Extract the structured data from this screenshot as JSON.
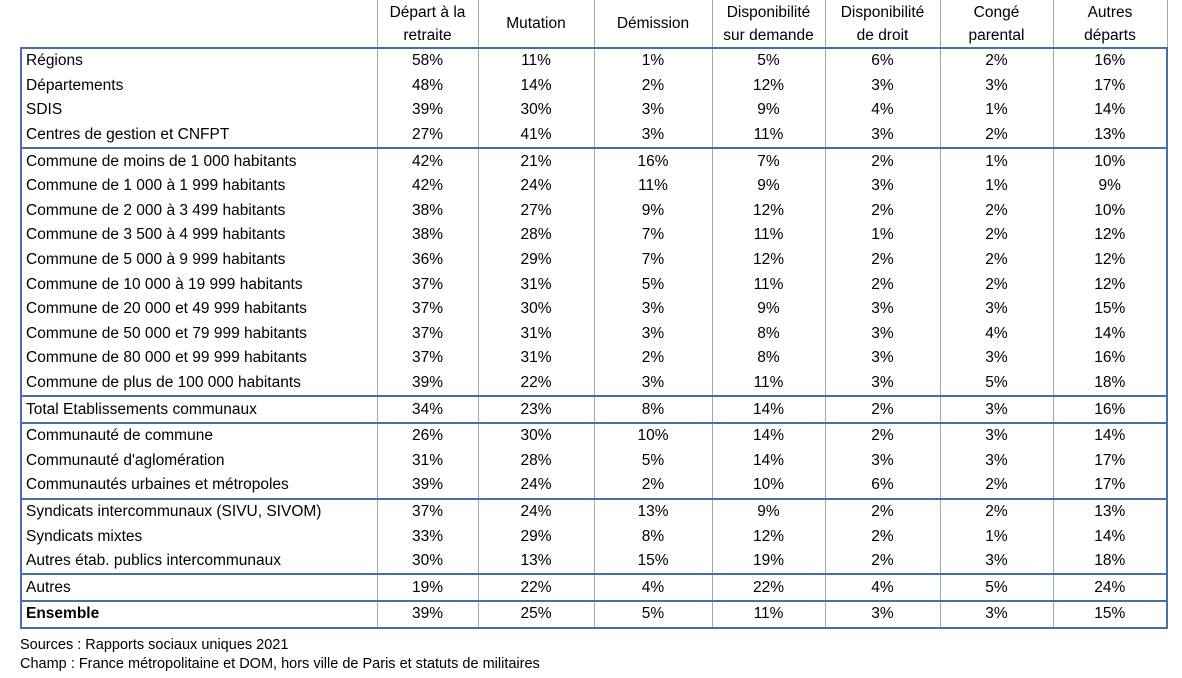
{
  "columns": [
    [
      "Départ à la",
      "retraite"
    ],
    [
      "Mutation"
    ],
    [
      "Démission"
    ],
    [
      "Disponibilité",
      "sur demande"
    ],
    [
      "Disponibilité",
      "de droit"
    ],
    [
      "Congé",
      "parental"
    ],
    [
      "Autres",
      "départs"
    ]
  ],
  "rows": [
    {
      "label": "Régions",
      "values": [
        "58%",
        "11%",
        "1%",
        "5%",
        "6%",
        "2%",
        "16%"
      ]
    },
    {
      "label": "Départements",
      "values": [
        "48%",
        "14%",
        "2%",
        "12%",
        "3%",
        "3%",
        "17%"
      ]
    },
    {
      "label": "SDIS",
      "values": [
        "39%",
        "30%",
        "3%",
        "9%",
        "4%",
        "1%",
        "14%"
      ]
    },
    {
      "label": "Centres de gestion et CNFPT",
      "values": [
        "27%",
        "41%",
        "3%",
        "11%",
        "3%",
        "2%",
        "13%"
      ],
      "group_end": true
    },
    {
      "label": "Commune de moins de 1 000 habitants",
      "values": [
        "42%",
        "21%",
        "16%",
        "7%",
        "2%",
        "1%",
        "10%"
      ]
    },
    {
      "label": "Commune de 1 000 à  1 999 habitants",
      "values": [
        "42%",
        "24%",
        "11%",
        "9%",
        "3%",
        "1%",
        "9%"
      ]
    },
    {
      "label": "Commune de 2 000 à 3 499 habitants",
      "values": [
        "38%",
        "27%",
        "9%",
        "12%",
        "2%",
        "2%",
        "10%"
      ]
    },
    {
      "label": "Commune de 3 500 à 4 999 habitants",
      "values": [
        "38%",
        "28%",
        "7%",
        "11%",
        "1%",
        "2%",
        "12%"
      ]
    },
    {
      "label": "Commune de 5 000 à 9 999 habitants",
      "values": [
        "36%",
        "29%",
        "7%",
        "12%",
        "2%",
        "2%",
        "12%"
      ]
    },
    {
      "label": "Commune de 10 000 à 19 999 habitants",
      "values": [
        "37%",
        "31%",
        "5%",
        "11%",
        "2%",
        "2%",
        "12%"
      ]
    },
    {
      "label": "Commune de 20 000 et 49 999 habitants",
      "values": [
        "37%",
        "30%",
        "3%",
        "9%",
        "3%",
        "3%",
        "15%"
      ]
    },
    {
      "label": "Commune de 50 000 et 79 999 habitants",
      "values": [
        "37%",
        "31%",
        "3%",
        "8%",
        "3%",
        "4%",
        "14%"
      ]
    },
    {
      "label": "Commune de 80 000 et 99 999 habitants",
      "values": [
        "37%",
        "31%",
        "2%",
        "8%",
        "3%",
        "3%",
        "16%"
      ]
    },
    {
      "label": "Commune de plus de 100 000 habitants",
      "values": [
        "39%",
        "22%",
        "3%",
        "11%",
        "3%",
        "5%",
        "18%"
      ],
      "group_end": true
    },
    {
      "label": "Total Etablissements communaux",
      "values": [
        "34%",
        "23%",
        "8%",
        "14%",
        "2%",
        "3%",
        "16%"
      ],
      "group_end": true
    },
    {
      "label": "Communauté de commune",
      "values": [
        "26%",
        "30%",
        "10%",
        "14%",
        "2%",
        "3%",
        "14%"
      ]
    },
    {
      "label": "Communauté d'aglomération",
      "values": [
        "31%",
        "28%",
        "5%",
        "14%",
        "3%",
        "3%",
        "17%"
      ]
    },
    {
      "label": "Communautés urbaines et métropoles",
      "values": [
        "39%",
        "24%",
        "2%",
        "10%",
        "6%",
        "2%",
        "17%"
      ],
      "group_end": true
    },
    {
      "label": "Syndicats intercommunaux (SIVU, SIVOM)",
      "values": [
        "37%",
        "24%",
        "13%",
        "9%",
        "2%",
        "2%",
        "13%"
      ]
    },
    {
      "label": "Syndicats mixtes",
      "values": [
        "33%",
        "29%",
        "8%",
        "12%",
        "2%",
        "1%",
        "14%"
      ]
    },
    {
      "label": "Autres étab. publics intercommunaux",
      "values": [
        "30%",
        "13%",
        "15%",
        "19%",
        "2%",
        "3%",
        "18%"
      ],
      "group_end": true
    },
    {
      "label": "Autres",
      "values": [
        "19%",
        "22%",
        "4%",
        "22%",
        "4%",
        "5%",
        "24%"
      ],
      "group_end": true
    },
    {
      "label": "Ensemble",
      "values": [
        "39%",
        "25%",
        "5%",
        "11%",
        "3%",
        "3%",
        "15%"
      ],
      "group_end": true,
      "bold": true
    }
  ],
  "notes": {
    "sources": "Sources : Rapports sociaux uniques 2021",
    "champ": "Champ : France métropolitaine et DOM, hors ville de Paris et statuts de militaires"
  }
}
